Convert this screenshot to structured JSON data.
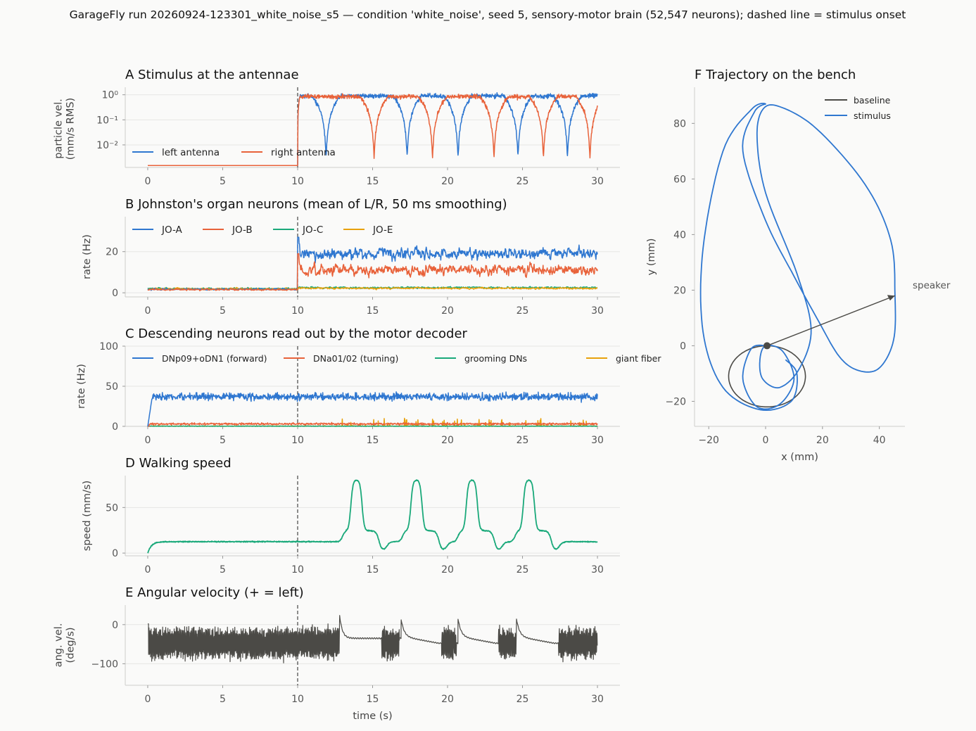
{
  "figure": {
    "suptitle": "GarageFly run 20260924-123301_white_noise_s5 — condition 'white_noise', seed 5, sensory-motor brain (52,547 neurons); dashed line = stimulus onset"
  },
  "colors": {
    "left": "#2f77d0",
    "right": "#e8623a",
    "green": "#1aa97a",
    "orange": "#e8a10c",
    "dark": "#4b4a46",
    "grid": "#e6e6e4",
    "axis": "#cfcfcc",
    "dashed": "#444444"
  },
  "chart_data": [
    {
      "id": "A",
      "type": "line",
      "title": "A  Stimulus at the antennae",
      "ylabel": [
        "particle vel.",
        "(mm/s RMS)"
      ],
      "xlabel": "",
      "yscale": "log",
      "xlim": [
        -1.5,
        31.5
      ],
      "ylim_log10": [
        -2.9,
        0.3
      ],
      "xticks": [
        "0",
        "5",
        "10",
        "15",
        "20",
        "25",
        "30"
      ],
      "yticks": [
        "10⁰",
        "10⁻¹",
        "10⁻²"
      ],
      "stimulus_onset": 10,
      "legend_position": "lower-left",
      "series": [
        {
          "name": "left antenna",
          "color": "left",
          "baseline": 0.0015,
          "level": 0.9,
          "dips": [
            11.9,
            17.3,
            20.7,
            24.7,
            28.0
          ]
        },
        {
          "name": "right antenna",
          "color": "right",
          "baseline": 0.0015,
          "level": 0.85,
          "dips": [
            15.1,
            19.0,
            23.1,
            26.4,
            29.5
          ]
        }
      ]
    },
    {
      "id": "B",
      "type": "line",
      "title": "B  Johnston's organ neurons (mean of L/R, 50 ms smoothing)",
      "ylabel": [
        "rate (Hz)"
      ],
      "xlabel": "",
      "xlim": [
        -1.5,
        31.5
      ],
      "ylim": [
        -2,
        37
      ],
      "xticks": [
        "0",
        "5",
        "10",
        "15",
        "20",
        "25",
        "30"
      ],
      "yticks": [
        "0",
        "20"
      ],
      "stimulus_onset": 10,
      "legend_position": "top-left",
      "series": [
        {
          "name": "JO-A",
          "color": "left",
          "baseline": 1.7,
          "stim_mean": 19
        },
        {
          "name": "JO-B",
          "color": "right",
          "baseline": 1.5,
          "stim_mean": 11
        },
        {
          "name": "JO-C",
          "color": "green",
          "baseline": 2.0,
          "stim_mean": 2.5
        },
        {
          "name": "JO-E",
          "color": "orange",
          "baseline": 1.9,
          "stim_mean": 2.2
        }
      ]
    },
    {
      "id": "C",
      "type": "line",
      "title": "C  Descending neurons read out by the motor decoder",
      "ylabel": [
        "rate (Hz)"
      ],
      "xlabel": "",
      "xlim": [
        -1.5,
        31.5
      ],
      "ylim": [
        0,
        100
      ],
      "xticks": [
        "0",
        "5",
        "10",
        "15",
        "20",
        "25",
        "30"
      ],
      "yticks": [
        "0",
        "50",
        "100"
      ],
      "stimulus_onset": 10,
      "legend_position": "top",
      "series": [
        {
          "name": "DNp09+oDN1 (forward)",
          "color": "left",
          "mean": 37
        },
        {
          "name": "DNa01/02 (turning)",
          "color": "right",
          "mean": 3
        },
        {
          "name": "grooming DNs",
          "color": "green",
          "mean": 0.5
        },
        {
          "name": "giant fiber",
          "color": "orange",
          "mean": 0.8
        }
      ]
    },
    {
      "id": "D",
      "type": "line",
      "title": "D  Walking speed",
      "ylabel": [
        "speed (mm/s)"
      ],
      "xlabel": "",
      "xlim": [
        -1.5,
        31.5
      ],
      "ylim": [
        -3,
        85
      ],
      "xticks": [
        "0",
        "5",
        "10",
        "15",
        "20",
        "25",
        "30"
      ],
      "yticks": [
        "0",
        "50"
      ],
      "stimulus_onset": 10,
      "series": [
        {
          "name": "speed",
          "color": "green",
          "baseline": 12.5,
          "peak": 80,
          "bursts": [
            13.0,
            17.0,
            20.7,
            24.5
          ]
        }
      ]
    },
    {
      "id": "E",
      "type": "line",
      "title": "E  Angular velocity (+ = left)",
      "ylabel": [
        "ang. vel.",
        "(deg/s)"
      ],
      "xlabel": "time (s)",
      "xlim": [
        -1.5,
        31.5
      ],
      "ylim": [
        -155,
        50
      ],
      "xticks": [
        "0",
        "5",
        "10",
        "15",
        "20",
        "25",
        "30"
      ],
      "yticks": [
        "0",
        "−100"
      ],
      "stimulus_onset": 10,
      "series": [
        {
          "name": "angular velocity",
          "color": "dark",
          "osc_center": -48,
          "osc_amp": 35,
          "osc_windows": [
            [
              0,
              12.8
            ],
            [
              15.6,
              16.8
            ],
            [
              19.6,
              20.6
            ],
            [
              23.4,
              24.6
            ],
            [
              27.4,
              30
            ]
          ],
          "spikes": [
            12.8,
            16.9,
            20.7,
            24.6,
            30
          ]
        }
      ]
    },
    {
      "id": "F",
      "type": "line",
      "title": "F  Trajectory on the bench",
      "xlabel": "x (mm)",
      "ylabel": [
        "y (mm)"
      ],
      "xlim": [
        -25,
        49
      ],
      "ylim": [
        -29,
        93
      ],
      "xticks": [
        "−20",
        "0",
        "20",
        "40"
      ],
      "yticks": [
        "−20",
        "0",
        "20",
        "40",
        "60",
        "80"
      ],
      "legend_position": "top-right",
      "series": [
        {
          "name": "baseline",
          "color": "dark"
        },
        {
          "name": "stimulus",
          "color": "left"
        }
      ],
      "annotation": {
        "text": "speaker",
        "arrow_from": [
          0.5,
          0
        ],
        "arrow_to": [
          45.5,
          18
        ]
      }
    }
  ]
}
